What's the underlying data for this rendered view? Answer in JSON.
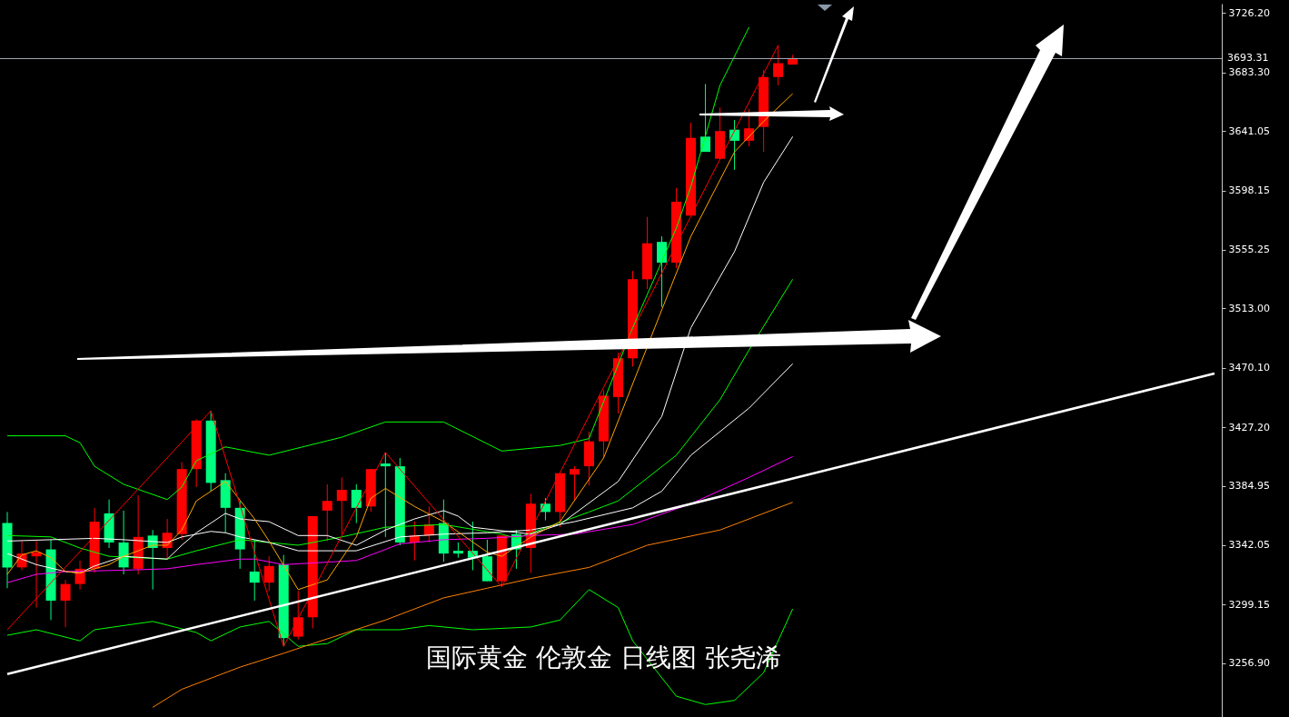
{
  "chart_data": {
    "type": "candlestick",
    "title": "国际黄金 伦敦金 日线图 张尧浠",
    "categories": [
      null,
      null,
      null,
      null,
      null,
      null,
      null,
      null,
      null,
      null,
      null,
      null,
      null,
      null,
      null,
      null,
      null,
      null,
      null,
      null,
      null,
      null,
      null,
      null,
      null,
      null,
      null,
      null,
      null,
      null,
      null,
      null,
      null,
      null,
      null,
      null,
      null,
      null,
      null,
      null,
      null,
      null,
      null,
      null,
      null,
      null,
      null,
      null,
      null,
      null,
      null,
      null,
      null,
      null,
      null,
      null,
      null,
      null,
      null,
      null,
      null,
      null,
      null,
      null,
      null,
      null,
      null,
      null,
      null,
      null,
      null,
      null,
      null,
      null,
      null,
      null,
      null,
      null,
      null,
      null,
      null,
      null,
      null,
      null
    ],
    "ohlc": [
      [
        3358,
        3366,
        3311,
        3326
      ],
      [
        3326,
        3345,
        3324,
        3336
      ],
      [
        3334,
        3345,
        3297,
        3337
      ],
      [
        3339,
        3346,
        3288,
        3302
      ],
      [
        3302,
        3317,
        3283,
        3314
      ],
      [
        3314,
        3331,
        3310,
        3325
      ],
      [
        3325,
        3369,
        3322,
        3359
      ],
      [
        3365,
        3375,
        3340,
        3344
      ],
      [
        3344,
        3367,
        3321,
        3326
      ],
      [
        3325,
        3378,
        3321,
        3348
      ],
      [
        3349,
        3353,
        3310,
        3340
      ],
      [
        3340,
        3361,
        3332,
        3351
      ],
      [
        3350,
        3402,
        3346,
        3397
      ],
      [
        3397,
        3433,
        3384,
        3432
      ],
      [
        3432,
        3439,
        3381,
        3387
      ],
      [
        3389,
        3394,
        3351,
        3369
      ],
      [
        3369,
        3374,
        3325,
        3339
      ],
      [
        3323,
        3346,
        3302,
        3315
      ],
      [
        3315,
        3334,
        3309,
        3327
      ],
      [
        3328,
        3335,
        3269,
        3275
      ],
      [
        3276,
        3309,
        3274,
        3290
      ],
      [
        3290,
        3363,
        3282,
        3363
      ],
      [
        3367,
        3386,
        3345,
        3374
      ],
      [
        3374,
        3391,
        3350,
        3382
      ],
      [
        3382,
        3386,
        3358,
        3369
      ],
      [
        3370,
        3397,
        3366,
        3397
      ],
      [
        3401,
        3409,
        3348,
        3399
      ],
      [
        3399,
        3405,
        3342,
        3344
      ],
      [
        3344,
        3359,
        3331,
        3349
      ],
      [
        3349,
        3370,
        3344,
        3357
      ],
      [
        3358,
        3375,
        3330,
        3336
      ],
      [
        3338,
        3344,
        3333,
        3336
      ],
      [
        3338,
        3359,
        3324,
        3333
      ],
      [
        3334,
        3346,
        3316,
        3316
      ],
      [
        3316,
        3349,
        3312,
        3349
      ],
      [
        3350,
        3353,
        3325,
        3339
      ],
      [
        3340,
        3379,
        3322,
        3372
      ],
      [
        3372,
        3376,
        3360,
        3366
      ],
      [
        3366,
        3394,
        3355,
        3394
      ],
      [
        3393,
        3399,
        3374,
        3397
      ],
      [
        3399,
        3424,
        3385,
        3417
      ],
      [
        3417,
        3454,
        3405,
        3450
      ],
      [
        3449,
        3481,
        3437,
        3477
      ],
      [
        3477,
        3540,
        3471,
        3534
      ],
      [
        3534,
        3579,
        3527,
        3560
      ],
      [
        3561,
        3565,
        3514,
        3546
      ],
      [
        3546,
        3600,
        3542,
        3590
      ],
      [
        3580,
        3647,
        3580,
        3636
      ],
      [
        3637,
        3675,
        3626,
        3626
      ],
      [
        3621,
        3658,
        3621,
        3641
      ],
      [
        3642,
        3649,
        3613,
        3634
      ],
      [
        3634,
        3657,
        3630,
        3643
      ],
      [
        3644,
        3685,
        3626,
        3680
      ],
      [
        3680,
        3703,
        3674,
        3690
      ],
      [
        3689,
        3696,
        3689,
        3693.31
      ],
      null,
      null,
      null,
      null,
      null,
      null,
      null,
      null,
      null,
      null,
      null,
      null,
      null,
      null,
      null,
      null,
      null,
      null,
      null,
      null,
      null,
      null,
      null,
      null,
      null,
      null,
      null,
      null,
      null
    ],
    "series": [
      {
        "type": "line",
        "color": "#00ff00",
        "values": [
          3421,
          null,
          null,
          null,
          3421,
          3416,
          3399,
          null,
          3386,
          null,
          null,
          3375,
          3384,
          3403,
          null,
          3413,
          null,
          null,
          3407,
          null,
          null,
          null,
          null,
          3420,
          null,
          null,
          3431,
          null,
          null,
          null,
          3431,
          null,
          null,
          null,
          3410,
          null,
          null,
          null,
          3414,
          null,
          3419,
          null,
          null,
          3499,
          null,
          null,
          3571,
          3601,
          null,
          3674,
          null,
          3716,
          null,
          null,
          null,
          null,
          null,
          null,
          null,
          null,
          null,
          null,
          null,
          null,
          null,
          null,
          null,
          null,
          null,
          null,
          null,
          null,
          null,
          null,
          null,
          null,
          null,
          null,
          null,
          null,
          null,
          null,
          null,
          null
        ]
      },
      {
        "type": "line",
        "color": "#00ff00",
        "values": [
          3349,
          null,
          null,
          3348,
          null,
          3340,
          null,
          3334,
          null,
          null,
          null,
          3332,
          null,
          3338,
          null,
          null,
          3346,
          null,
          null,
          null,
          3342,
          null,
          null,
          3348,
          null,
          null,
          3355,
          null,
          null,
          null,
          3357,
          null,
          null,
          null,
          3350,
          3347,
          null,
          null,
          null,
          null,
          3366,
          null,
          3374,
          null,
          null,
          null,
          3407,
          null,
          null,
          3447,
          null,
          3483,
          null,
          null,
          3534,
          null,
          null,
          null,
          null,
          null,
          null,
          null,
          null,
          null,
          null,
          null,
          null,
          null,
          null,
          null,
          null,
          null,
          null,
          null,
          null,
          null,
          null,
          null,
          null,
          null,
          null,
          null,
          null,
          null
        ]
      },
      {
        "type": "line",
        "color": "#00ff00",
        "values": [
          3277,
          null,
          3281,
          null,
          null,
          3273,
          3281,
          null,
          null,
          null,
          3287,
          null,
          null,
          3279,
          3273,
          null,
          3283,
          null,
          3287,
          null,
          3269,
          null,
          3271,
          null,
          3281,
          null,
          null,
          3281,
          null,
          3284,
          null,
          null,
          3281,
          null,
          null,
          null,
          3283,
          null,
          3288,
          null,
          3310,
          null,
          3297,
          3273,
          null,
          null,
          3233,
          null,
          3227,
          null,
          3230,
          null,
          3250,
          null,
          3296,
          null,
          null,
          null,
          null,
          null,
          null,
          null,
          null,
          null,
          null,
          null,
          null,
          null,
          null,
          null,
          null,
          null,
          null,
          null,
          null,
          null,
          null,
          null,
          null,
          null,
          null,
          null,
          null,
          null
        ]
      },
      {
        "type": "line",
        "color": "#ffffff",
        "values": [
          3336,
          null,
          3328,
          null,
          3323,
          3322,
          3327,
          null,
          3334,
          null,
          null,
          3332,
          3342,
          3351,
          null,
          3365,
          3361,
          null,
          3359,
          null,
          3349,
          null,
          3349,
          null,
          3342,
          null,
          3353,
          null,
          3361,
          null,
          3367,
          3363,
          3355,
          null,
          null,
          null,
          3350,
          null,
          3357,
          null,
          null,
          null,
          3388,
          null,
          null,
          3435,
          null,
          3499,
          null,
          null,
          3554,
          null,
          3604,
          null,
          3637,
          null,
          null,
          null,
          null,
          null,
          null,
          null,
          null,
          null,
          null,
          null,
          null,
          null,
          null,
          null,
          null,
          null,
          null,
          null,
          null,
          null,
          null,
          null,
          null,
          null,
          null,
          null,
          null,
          null
        ]
      },
      {
        "type": "line",
        "color": "#ffffff",
        "values": [
          3345,
          null,
          null,
          null,
          null,
          null,
          3347,
          null,
          3346,
          null,
          null,
          3344,
          3348,
          null,
          3352,
          3351,
          3348,
          null,
          3344,
          null,
          3338,
          null,
          null,
          null,
          3338,
          null,
          null,
          3348,
          null,
          null,
          3350,
          null,
          null,
          3351,
          null,
          null,
          3353,
          null,
          null,
          3359,
          null,
          null,
          null,
          3369,
          null,
          3381,
          null,
          3407,
          null,
          null,
          null,
          3441,
          null,
          null,
          3473,
          null,
          null,
          null,
          null,
          null,
          null,
          null,
          null,
          null,
          null,
          null,
          null,
          null,
          null,
          null,
          null,
          null,
          null,
          null,
          null,
          null,
          null,
          null,
          null,
          null,
          null,
          null,
          null,
          null
        ]
      },
      {
        "type": "line",
        "color": "#ff00ff",
        "values": [
          3315,
          null,
          3321,
          null,
          3323,
          null,
          null,
          null,
          3324,
          null,
          null,
          3325,
          null,
          3328,
          null,
          null,
          3332,
          3332,
          null,
          3328,
          null,
          null,
          null,
          null,
          3331,
          null,
          null,
          3343,
          null,
          null,
          3346,
          null,
          null,
          3347,
          null,
          null,
          3349,
          null,
          null,
          3350,
          null,
          null,
          null,
          3357,
          null,
          null,
          null,
          3372,
          null,
          null,
          null,
          3391,
          null,
          null,
          3406,
          null,
          null,
          null,
          null,
          null,
          null,
          null,
          null,
          null,
          null,
          null,
          null,
          null,
          null,
          null,
          null,
          null,
          null,
          null,
          null,
          null,
          null,
          null,
          null,
          null,
          null,
          null,
          null,
          null
        ]
      },
      {
        "type": "line",
        "color": "#ff8000",
        "values": [
          null,
          null,
          null,
          null,
          null,
          null,
          null,
          null,
          null,
          null,
          3225,
          null,
          3238,
          null,
          null,
          null,
          3254,
          null,
          null,
          3264,
          null,
          3271,
          null,
          null,
          null,
          null,
          3288,
          null,
          null,
          null,
          3304,
          null,
          null,
          3311,
          null,
          null,
          3318,
          null,
          null,
          null,
          3326,
          null,
          null,
          null,
          3342,
          null,
          null,
          null,
          null,
          3353,
          null,
          null,
          null,
          null,
          3373,
          null,
          null,
          null,
          null,
          null,
          null,
          null,
          null,
          null,
          null,
          null,
          null,
          null,
          null,
          null,
          null,
          null,
          null,
          null,
          null,
          null,
          null,
          null,
          null,
          null,
          null,
          null,
          null,
          null
        ]
      },
      {
        "type": "line",
        "color": "#ffa500",
        "values": [
          3321,
          3335,
          3338,
          3333,
          3323,
          3322,
          null,
          3328,
          3334,
          null,
          3342,
          3342,
          3353,
          3374,
          3381,
          3388,
          null,
          3361,
          3345,
          null,
          3310,
          null,
          3317,
          null,
          3348,
          3376,
          3383,
          null,
          3370,
          null,
          3359,
          null,
          null,
          3337,
          3334,
          null,
          3348,
          null,
          3359,
          null,
          null,
          3405,
          null,
          null,
          null,
          3512,
          null,
          3565,
          null,
          null,
          3626,
          null,
          3648,
          null,
          3668,
          null,
          null,
          null,
          null,
          null,
          null,
          null,
          null,
          null,
          null,
          null,
          null,
          null,
          null,
          null,
          null,
          null,
          null,
          null,
          null,
          null,
          null,
          null,
          null,
          null,
          null,
          null,
          null,
          null
        ]
      },
      {
        "type": "line",
        "color": "#ff0000",
        "values": [
          3281,
          null,
          null,
          null,
          null,
          null,
          null,
          null,
          null,
          null,
          null,
          null,
          null,
          null,
          3439,
          null,
          null,
          null,
          null,
          3269,
          null,
          null,
          null,
          null,
          null,
          null,
          3409,
          null,
          null,
          null,
          null,
          null,
          null,
          null,
          3312,
          null,
          null,
          null,
          null,
          null,
          null,
          null,
          null,
          null,
          null,
          null,
          null,
          null,
          null,
          null,
          null,
          null,
          null,
          3703,
          null,
          null,
          null,
          null,
          null,
          null,
          null,
          null,
          null,
          null,
          null,
          null,
          null,
          null,
          null,
          null,
          null,
          null,
          null,
          null,
          null,
          null,
          null,
          null,
          null,
          null,
          null,
          null,
          null,
          null
        ]
      },
      {
        "type": "line",
        "color": "#ffffff",
        "values": [
          3249,
          null,
          null,
          null,
          null,
          null,
          null,
          null,
          null,
          null,
          null,
          null,
          null,
          null,
          null,
          null,
          null,
          null,
          null,
          null,
          null,
          null,
          null,
          null,
          null,
          null,
          null,
          null,
          null,
          null,
          null,
          null,
          null,
          null,
          null,
          null,
          null,
          null,
          null,
          null,
          null,
          null,
          null,
          null,
          null,
          null,
          null,
          null,
          null,
          null,
          null,
          null,
          null,
          null,
          null,
          null,
          null,
          null,
          null,
          null,
          null,
          null,
          null,
          null,
          null,
          null,
          null,
          null,
          null,
          null,
          null,
          null,
          null,
          null,
          null,
          null,
          null,
          null,
          null,
          null,
          null,
          null,
          null,
          3466
        ]
      }
    ],
    "ylim": [
      3218,
      3733
    ],
    "yticks": [
      {
        "value": 3256.9,
        "label": "3256.90"
      },
      {
        "value": 3299.15,
        "label": "3299.15"
      },
      {
        "value": 3342.05,
        "label": "3342.05"
      },
      {
        "value": 3384.95,
        "label": "3384.95"
      },
      {
        "value": 3427.2,
        "label": "3427.20"
      },
      {
        "value": 3470.1,
        "label": "3470.10"
      },
      {
        "value": 3513,
        "label": "3513.00"
      },
      {
        "value": 3555.25,
        "label": "3555.25"
      },
      {
        "value": 3598.15,
        "label": "3598.15"
      },
      {
        "value": 3641.05,
        "label": "3641.05"
      },
      {
        "value": 3683.3,
        "label": "3683.30"
      },
      {
        "value": 3726.2,
        "label": "3726.20"
      }
    ],
    "ref_lines": [
      {
        "axis": "y",
        "value": 3693.31,
        "label": "3693.31",
        "color": "#a0a8b0"
      }
    ]
  }
}
